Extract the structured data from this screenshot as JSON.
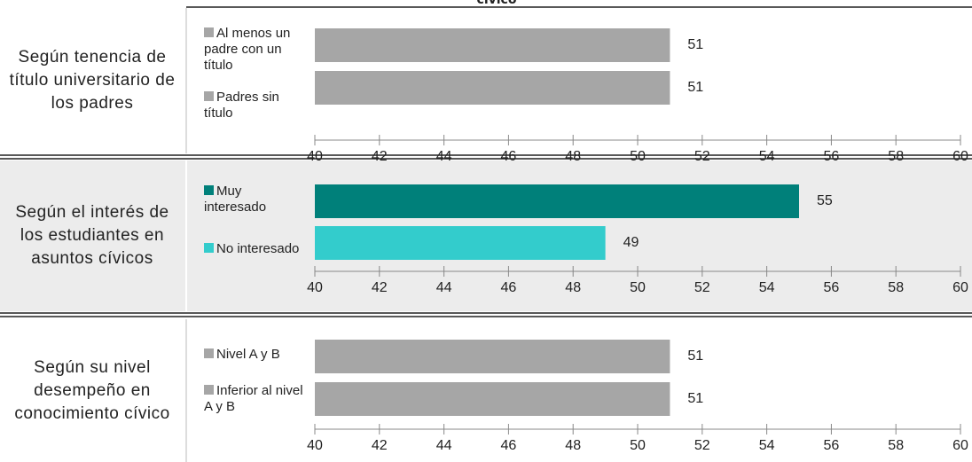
{
  "heading": "cívico",
  "chart_data": [
    {
      "type": "bar",
      "orientation": "horizontal",
      "title": "Según tenencia de título universitario de los padres",
      "categories": [
        "Al menos un padre con un título",
        "Padres sin título"
      ],
      "values": [
        51,
        51
      ],
      "colors": [
        "#a6a6a6",
        "#a6a6a6"
      ],
      "xlim": [
        40,
        60
      ],
      "xticks": [
        40,
        42,
        44,
        46,
        48,
        50,
        52,
        54,
        56,
        58,
        60
      ]
    },
    {
      "type": "bar",
      "orientation": "horizontal",
      "title": "Según el interés de los estudiantes en asuntos cívicos",
      "categories": [
        "Muy interesado",
        "No interesado"
      ],
      "values": [
        55,
        49
      ],
      "colors": [
        "#00807a",
        "#33cccc"
      ],
      "xlim": [
        40,
        60
      ],
      "xticks": [
        40,
        42,
        44,
        46,
        48,
        50,
        52,
        54,
        56,
        58,
        60
      ]
    },
    {
      "type": "bar",
      "orientation": "horizontal",
      "title": "Según su nivel desempeño en conocimiento cívico",
      "categories": [
        "Nivel A y B",
        "Inferior al nivel A y B"
      ],
      "values": [
        51,
        51
      ],
      "colors": [
        "#a6a6a6",
        "#a6a6a6"
      ],
      "xlim": [
        40,
        60
      ],
      "xticks": [
        40,
        42,
        44,
        46,
        48,
        50,
        52,
        54,
        56,
        58,
        60
      ]
    }
  ]
}
